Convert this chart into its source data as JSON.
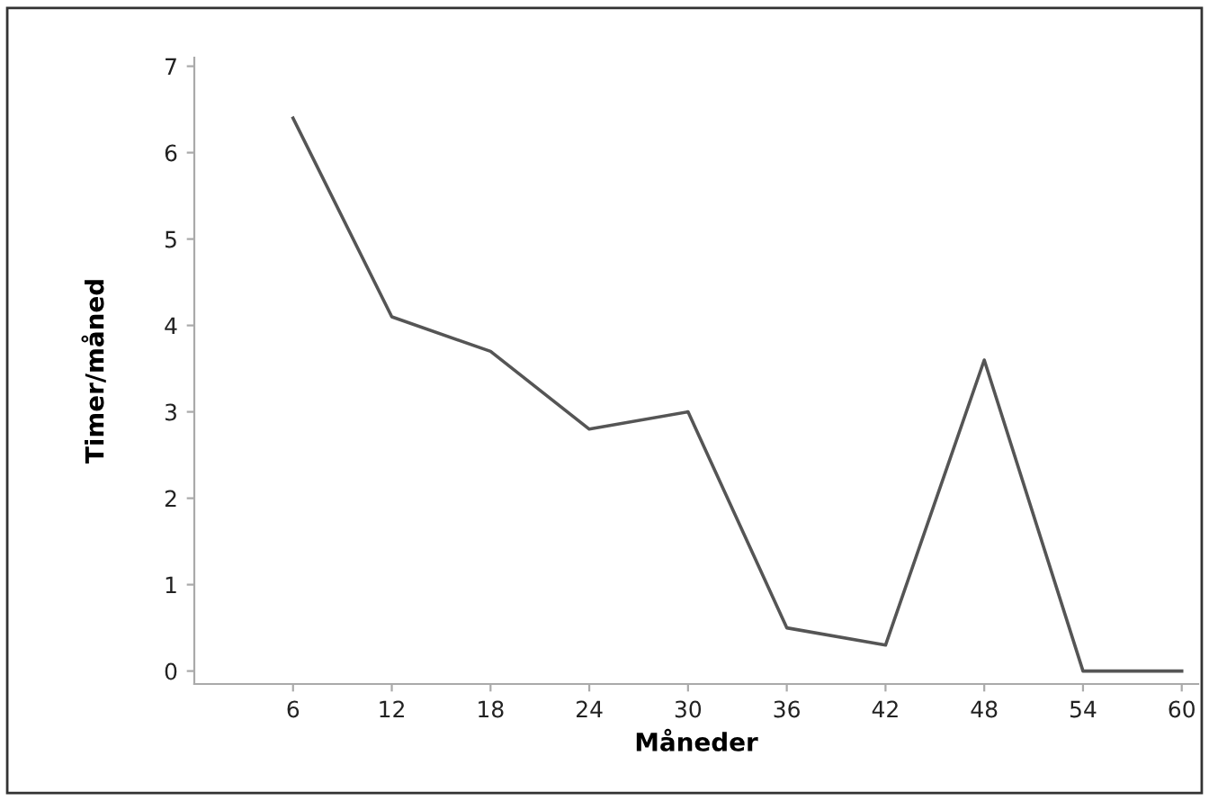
{
  "chart_data": {
    "type": "line",
    "xlabel": "Måneder",
    "ylabel": "Timer/måned",
    "x": [
      6,
      12,
      18,
      24,
      30,
      36,
      42,
      48,
      54,
      60
    ],
    "series": [
      {
        "color": "#555555",
        "values": [
          6.4,
          4.1,
          3.7,
          2.8,
          3.0,
          0.5,
          0.3,
          3.6,
          0,
          0
        ]
      }
    ],
    "xlim": [
      0,
      61
    ],
    "ylim": [
      -0.15,
      7.1
    ],
    "xticks": [
      6,
      12,
      18,
      24,
      30,
      36,
      42,
      48,
      54,
      60
    ],
    "yticks": [
      0,
      1,
      2,
      3,
      4,
      5,
      6,
      7
    ],
    "grid": false,
    "legend": false,
    "marker": "none",
    "line_style": "solid"
  }
}
